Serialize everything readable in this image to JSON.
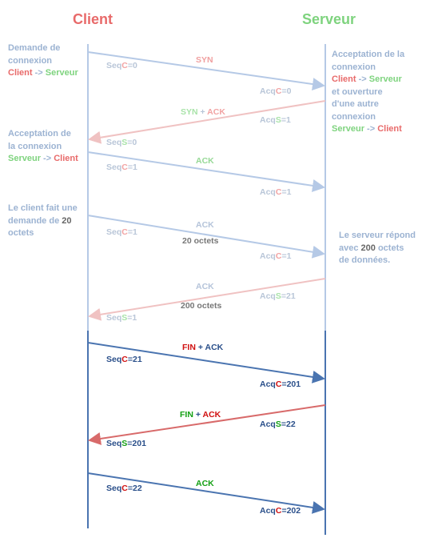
{
  "header": {
    "client": "Client",
    "server": "Serveur"
  },
  "colors": {
    "client": "#e86a6a",
    "server": "#7ed37e",
    "faded_line": "#b5c9e6",
    "dark_line": "#4a74b0"
  },
  "left_notes": {
    "n1": {
      "line1": "Demande de",
      "line2": "connexion",
      "c": "Client",
      "arrow": " -> ",
      "s": "Serveur"
    },
    "n2": {
      "line1": "Acceptation de",
      "line2": "la connexion",
      "s": "Serveur",
      "arrow": " -> ",
      "c": "Client"
    },
    "n3": {
      "line1": "Le client fait une",
      "line2a": "demande de ",
      "num": "20",
      "line3": "octets"
    }
  },
  "right_notes": {
    "n1": {
      "line1": "Acceptation de la",
      "line2": "connexion",
      "c": "Client",
      "arrow1": " -> ",
      "s": "Serveur",
      "line3": "et ouverture",
      "line4": "d'une autre",
      "line5": "connexion",
      "s2": "Serveur",
      "arrow2": " -> ",
      "c2": "Client"
    },
    "n2": {
      "line1": "Le serveur répond",
      "line2a": "avec ",
      "num": "200",
      "line2b": " octets",
      "line3": "de données."
    }
  },
  "messages": {
    "m1": {
      "seq": "Seq",
      "seq_letter": "C",
      "seq_val": "=0",
      "label": "SYN",
      "acq": "Acq",
      "acq_letter": "C",
      "acq_val": "=0"
    },
    "m2": {
      "label_a": "SYN",
      "plus": " + ",
      "label_b": "ACK",
      "acq": "Acq",
      "acq_letter": "S",
      "acq_val": "=1"
    },
    "m2b": {
      "seq": "Seq",
      "seq_letter": "S",
      "seq_val": "=0"
    },
    "m3": {
      "seq": "Seq",
      "seq_letter": "C",
      "seq_val": "=1",
      "label": "ACK",
      "acq": "Acq",
      "acq_letter": "C",
      "acq_val": "=1"
    },
    "m4": {
      "seq": "Seq",
      "seq_letter": "C",
      "seq_val": "=1",
      "label": "ACK",
      "data": "20 octets",
      "acq": "Acq",
      "acq_letter": "C",
      "acq_val": "=1"
    },
    "m5": {
      "label": "ACK",
      "data": "200 octets",
      "acq": "Acq",
      "acq_letter": "S",
      "acq_val": "=21",
      "seq": "Seq",
      "seq_letter": "S",
      "seq_val": "=1"
    },
    "m6": {
      "label_a": "FIN",
      "plus": " + ",
      "label_b": "ACK",
      "seq": "Seq",
      "seq_letter": "C",
      "seq_val": "=21",
      "acq": "Acq",
      "acq_letter": "C",
      "acq_val": "=201"
    },
    "m7": {
      "label_a": "FIN",
      "plus": " + ",
      "label_b": "ACK",
      "acq": "Acq",
      "acq_letter": "S",
      "acq_val": "=22",
      "seq": "Seq",
      "seq_letter": "S",
      "seq_val": "=201"
    },
    "m8": {
      "seq": "Seq",
      "seq_letter": "C",
      "seq_val": "=22",
      "label": "ACK",
      "acq": "Acq",
      "acq_letter": "C",
      "acq_val": "=202"
    }
  }
}
